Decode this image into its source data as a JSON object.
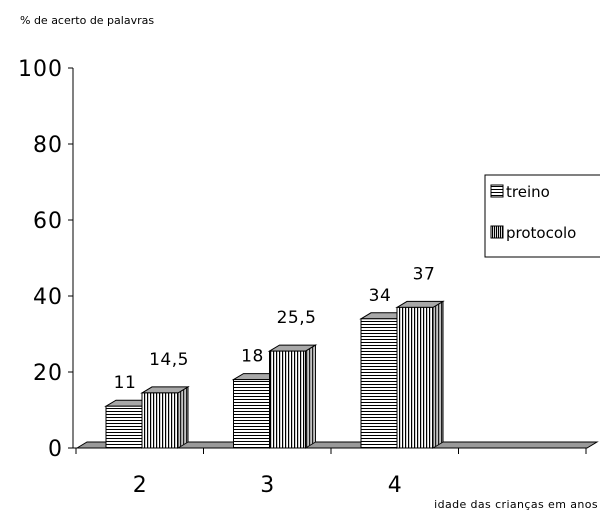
{
  "chart_data": {
    "type": "bar",
    "title": "",
    "ylabel": "% de acerto de palavras",
    "xlabel": "idade das crianças  em anos",
    "categories": [
      "2",
      "3",
      "4"
    ],
    "ylim": [
      0,
      100
    ],
    "yticks": [
      "0",
      "20",
      "40",
      "60",
      "80",
      "100"
    ],
    "grid": false,
    "legend_position": "right",
    "series": [
      {
        "name": "treino",
        "values": [
          11,
          18,
          34
        ],
        "data_labels": [
          "11",
          "18",
          "34"
        ],
        "pattern": "horizontal-lines"
      },
      {
        "name": "protocolo",
        "values": [
          14.5,
          25.5,
          37
        ],
        "data_labels": [
          "14,5",
          "25,5",
          "37"
        ],
        "pattern": "vertical-lines"
      }
    ]
  }
}
